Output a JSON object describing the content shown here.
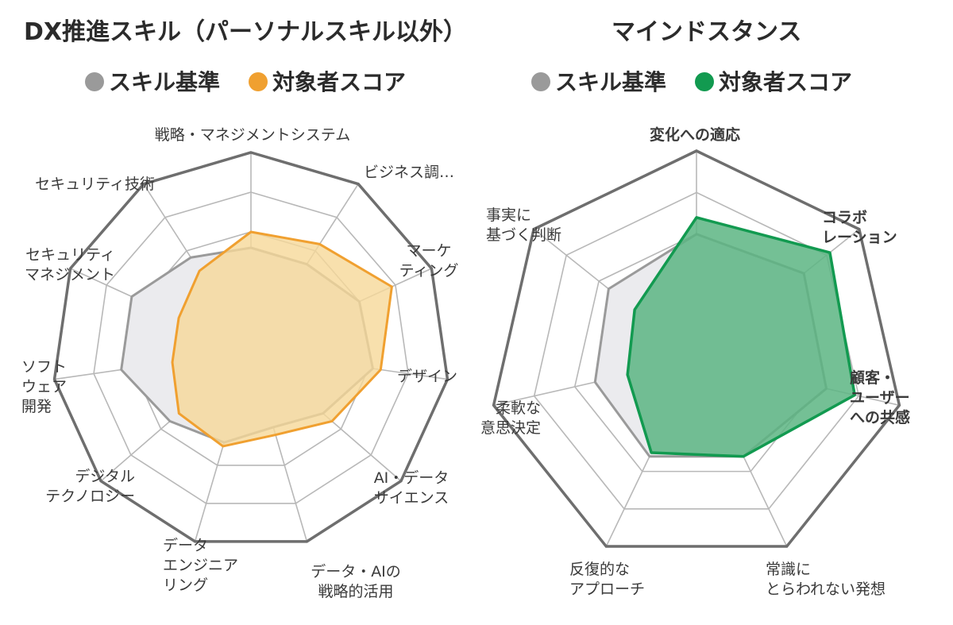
{
  "colors": {
    "baseline_line": "#9a9a9a",
    "baseline_fill": "#ebebee",
    "left_accent": "#f0a030",
    "left_fill": "#f6d898",
    "right_accent": "#129a50",
    "right_fill": "#5cb582",
    "grid": "#b8b8b8",
    "outer": "#6e6e6e"
  },
  "chart_data": [
    {
      "type": "radar",
      "title": "DX推進スキル（パーソナルスキル以外）",
      "legend": [
        "スキル基準",
        "対象者スコア"
      ],
      "rlim": [
        0,
        5
      ],
      "categories": [
        "戦略・マネジメントシステム",
        "ビジネス調…",
        "マーケティング",
        "デザイン",
        "AI・データサイエンス",
        "データ・AIの戦略的活用",
        "データエンジニアリング",
        "デジタルテクノロジー",
        "ソフトウェア開発",
        "セキュリティマネジメント",
        "セキュリティ技術"
      ],
      "series": [
        {
          "name": "スキル基準",
          "values": [
            2.6,
            2.6,
            3.0,
            3.1,
            2.4,
            2.0,
            2.4,
            2.7,
            3.3,
            3.3,
            2.8
          ]
        },
        {
          "name": "対象者スコア",
          "values": [
            3.0,
            3.2,
            3.9,
            3.3,
            2.7,
            2.2,
            2.5,
            2.4,
            2.0,
            2.0,
            2.4
          ]
        }
      ]
    },
    {
      "type": "radar",
      "title": "マインドスタンス",
      "legend": [
        "スキル基準",
        "対象者スコア"
      ],
      "rlim": [
        0,
        5
      ],
      "categories": [
        "変化への適応",
        "コラボレーション",
        "顧客・ユーザーへの共感",
        "常識にとらわれない発想",
        "反復的なアプローチ",
        "柔軟な意思決定",
        "事実に基づく判断"
      ],
      "series": [
        {
          "name": "スキル基準",
          "values": [
            3.0,
            3.3,
            3.2,
            2.6,
            2.6,
            2.5,
            2.7
          ]
        },
        {
          "name": "対象者スコア",
          "values": [
            3.4,
            4.1,
            3.9,
            2.6,
            2.5,
            1.7,
            1.9
          ]
        }
      ]
    }
  ],
  "labels_left": [
    [
      "戦略・マネジメントシステム"
    ],
    [
      "ビジネス調…"
    ],
    [
      "マーケ",
      "ティング"
    ],
    [
      "デザイン"
    ],
    [
      "AI・データ",
      "サイエンス"
    ],
    [
      "データ・AIの",
      "戦略的活用"
    ],
    [
      "データ",
      "エンジニア",
      "リング"
    ],
    [
      "デジタル",
      "テクノロジー"
    ],
    [
      "ソフト",
      "ウェア",
      "開発"
    ],
    [
      "セキュリティ",
      "マネジメント"
    ],
    [
      "セキュリティ技術"
    ]
  ],
  "labels_right": [
    [
      "変化への適応"
    ],
    [
      "コラボ",
      "レーション"
    ],
    [
      "顧客・",
      "ユーザー",
      "への共感"
    ],
    [
      "常識に",
      "とらわれない発想"
    ],
    [
      "反復的な",
      "アプローチ"
    ],
    [
      "柔軟な",
      "意思決定"
    ],
    [
      "事実に",
      "基づく判断"
    ]
  ]
}
